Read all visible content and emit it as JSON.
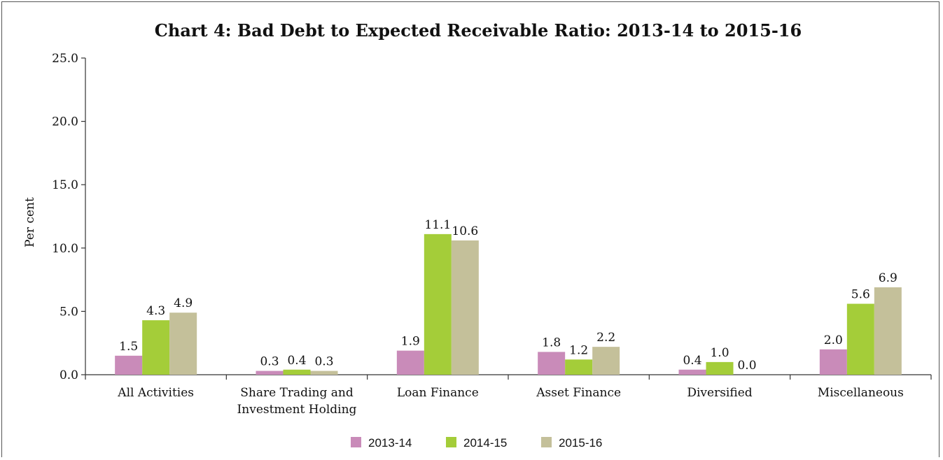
{
  "chart_data": {
    "type": "bar",
    "title": "Chart 4: Bad Debt to Expected Receivable Ratio: 2013-14 to 2015-16",
    "ylabel": "Per cent",
    "xlabel": "",
    "ylim": [
      0,
      25
    ],
    "yticks": [
      "0.0",
      "5.0",
      "10.0",
      "15.0",
      "20.0",
      "25.0"
    ],
    "ytick_values": [
      0,
      5,
      10,
      15,
      20,
      25
    ],
    "categories": [
      [
        "All Activities"
      ],
      [
        "Share Trading and",
        "Investment Holding"
      ],
      [
        "Loan Finance"
      ],
      [
        "Asset Finance"
      ],
      [
        "Diversified"
      ],
      [
        "Miscellaneous"
      ]
    ],
    "series": [
      {
        "name": "2013-14",
        "color": "#c98bb9",
        "values": [
          1.5,
          0.3,
          1.9,
          1.8,
          0.4,
          2.0
        ],
        "labels": [
          "1.5",
          "0.3",
          "1.9",
          "1.8",
          "0.4",
          "2.0"
        ]
      },
      {
        "name": "2014-15",
        "color": "#a4cd39",
        "values": [
          4.3,
          0.4,
          11.1,
          1.2,
          1.0,
          5.6
        ],
        "labels": [
          "4.3",
          "0.4",
          "11.1",
          "1.2",
          "1.0",
          "5.6"
        ]
      },
      {
        "name": "2015-16",
        "color": "#c4c09a",
        "values": [
          4.9,
          0.3,
          10.6,
          2.2,
          0.0,
          6.9
        ],
        "labels": [
          "4.9",
          "0.3",
          "10.6",
          "2.2",
          "0.0",
          "6.9"
        ]
      }
    ],
    "legend_position": "bottom-center",
    "grid": false
  }
}
